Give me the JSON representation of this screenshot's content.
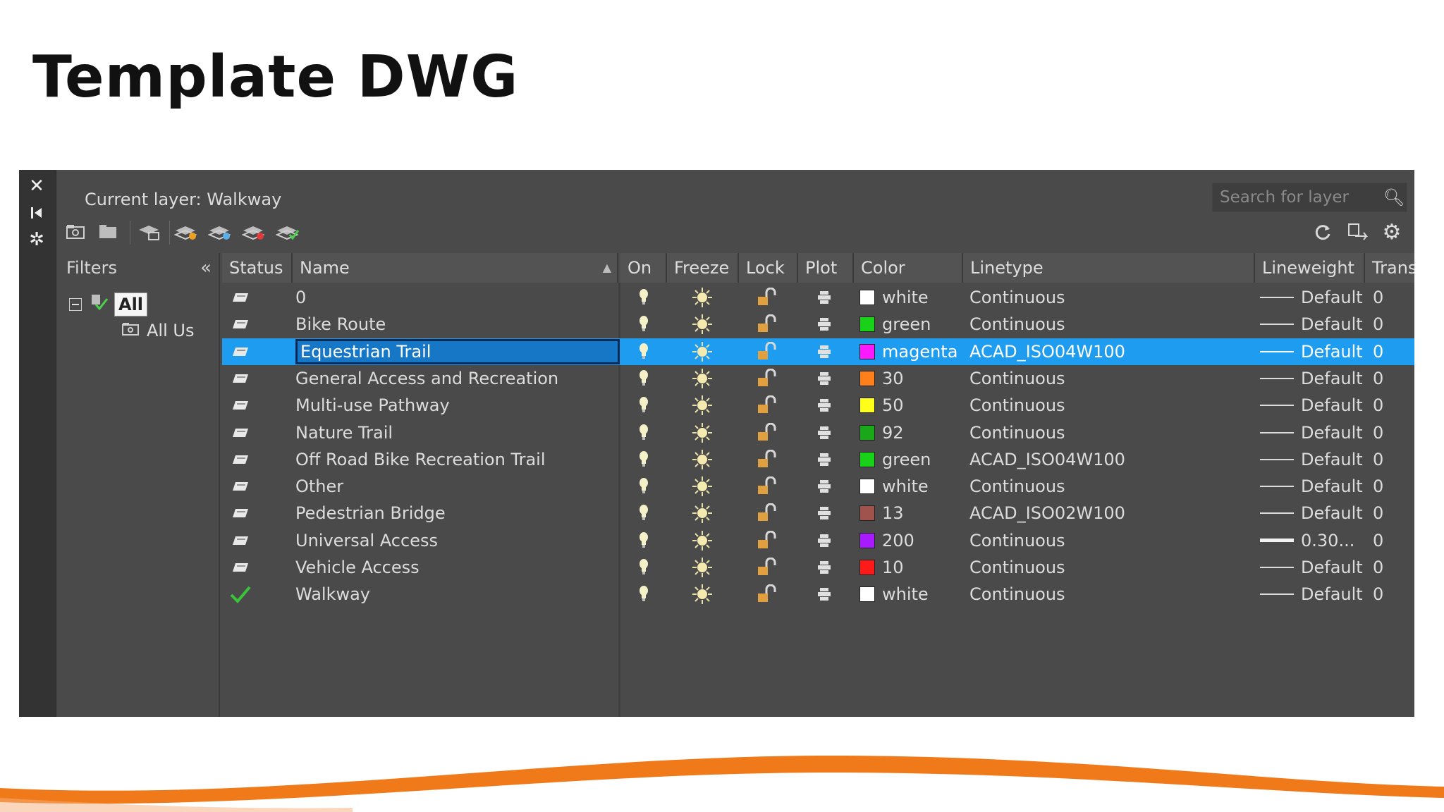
{
  "slide": {
    "title": "Template DWG"
  },
  "colors": {
    "orange": "#f07a1a",
    "selection": "#1e9cf0",
    "panel": "#4a4a4a"
  },
  "layer_panel": {
    "current_layer": "Current layer: Walkway",
    "search_placeholder": "Search for layer",
    "side_strip_icons": [
      "close-icon",
      "pin-icon",
      "settings-icon"
    ],
    "toolbar_left_icons": [
      "new-property-filter-icon",
      "new-group-filter-icon",
      "layer-states-manager-icon",
      "new-layer-icon",
      "new-layer-vp-frozen-icon",
      "delete-layer-icon",
      "set-current-icon"
    ],
    "toolbar_right_icons": [
      "refresh-icon",
      "layer-settings-transfer-icon",
      "gear-icon"
    ],
    "filters": {
      "label": "Filters",
      "collapse_icon": "double-chevron-left-icon",
      "tree": [
        {
          "label": "All",
          "selected": true
        },
        {
          "label": "All Us"
        }
      ]
    },
    "columns": [
      "Status",
      "Name",
      "On",
      "Freeze",
      "Lock",
      "Plot",
      "Color",
      "Linetype",
      "Lineweight",
      "Transp"
    ],
    "rows": [
      {
        "status": "layer",
        "name": "0",
        "color_name": "white",
        "color_hex": "#ffffff",
        "linetype": "Continuous",
        "lineweight": "Default",
        "transparency": "0"
      },
      {
        "status": "layer",
        "name": "Bike Route",
        "color_name": "green",
        "color_hex": "#19d119",
        "linetype": "Continuous",
        "lineweight": "Default",
        "transparency": "0"
      },
      {
        "status": "layer",
        "name": "Equestrian Trail",
        "color_name": "magenta",
        "color_hex": "#ff19ff",
        "linetype": "ACAD_ISO04W100",
        "lineweight": "Default",
        "transparency": "0",
        "selected": true
      },
      {
        "status": "layer",
        "name": "General Access and Recreation",
        "color_name": "30",
        "color_hex": "#ff7f1a",
        "linetype": "Continuous",
        "lineweight": "Default",
        "transparency": "0"
      },
      {
        "status": "layer",
        "name": "Multi-use Pathway",
        "color_name": "50",
        "color_hex": "#ffff1a",
        "linetype": "Continuous",
        "lineweight": "Default",
        "transparency": "0"
      },
      {
        "status": "layer",
        "name": "Nature Trail",
        "color_name": "92",
        "color_hex": "#1aa81a",
        "linetype": "Continuous",
        "lineweight": "Default",
        "transparency": "0"
      },
      {
        "status": "layer",
        "name": "Off Road Bike Recreation Trail",
        "color_name": "green",
        "color_hex": "#19d119",
        "linetype": "ACAD_ISO04W100",
        "lineweight": "Default",
        "transparency": "0"
      },
      {
        "status": "layer",
        "name": "Other",
        "color_name": "white",
        "color_hex": "#ffffff",
        "linetype": "Continuous",
        "lineweight": "Default",
        "transparency": "0"
      },
      {
        "status": "layer",
        "name": "Pedestrian Bridge",
        "color_name": "13",
        "color_hex": "#a0524d",
        "linetype": "ACAD_ISO02W100",
        "lineweight": "Default",
        "transparency": "0"
      },
      {
        "status": "layer",
        "name": "Universal Access",
        "color_name": "200",
        "color_hex": "#a81aff",
        "linetype": "Continuous",
        "lineweight": "0.30...",
        "transparency": "0",
        "thick": true
      },
      {
        "status": "layer",
        "name": "Vehicle Access",
        "color_name": "10",
        "color_hex": "#ff1a1a",
        "linetype": "Continuous",
        "lineweight": "Default",
        "transparency": "0"
      },
      {
        "status": "current",
        "name": "Walkway",
        "color_name": "white",
        "color_hex": "#ffffff",
        "linetype": "Continuous",
        "lineweight": "Default",
        "transparency": "0"
      }
    ]
  }
}
